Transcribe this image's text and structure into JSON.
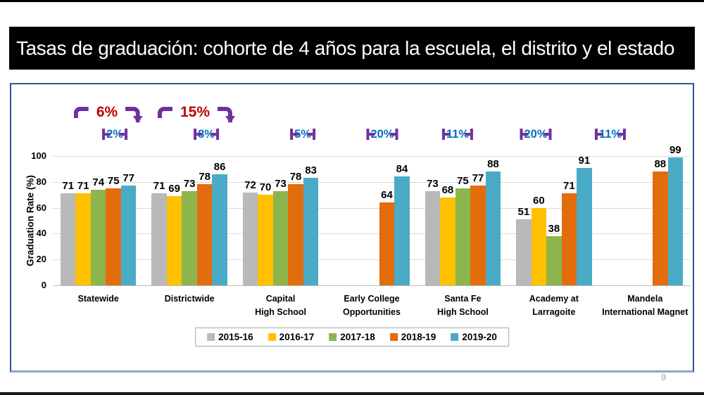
{
  "slide": {
    "title": "Tasas de graduación: cohorte de 4 años para la escuela, el distrito y el estado",
    "page_number": "9"
  },
  "chart_data": {
    "type": "bar",
    "title": "Tasas de graduación: cohorte de 4 años para la escuela, el distrito y el estado",
    "xlabel": "",
    "ylabel": "Graduation Rate (%)",
    "ylim": [
      0,
      100
    ],
    "yticks": [
      0,
      20,
      40,
      60,
      80,
      100
    ],
    "grid": true,
    "legend_position": "bottom",
    "categories": [
      "Statewide",
      "Districtwide",
      "Capital\nHigh School",
      "Early College\nOpportunities",
      "Santa Fe\nHigh School",
      "Academy at\nLarragoite",
      "Mandela\nInternational Magnet"
    ],
    "series": [
      {
        "name": "2015-16",
        "color": "#b9b9b9",
        "values": [
          71,
          71,
          72,
          null,
          73,
          51,
          null
        ]
      },
      {
        "name": "2016-17",
        "color": "#ffc000",
        "values": [
          71,
          69,
          70,
          null,
          68,
          60,
          null
        ]
      },
      {
        "name": "2017-18",
        "color": "#8db54e",
        "values": [
          74,
          73,
          73,
          null,
          75,
          38,
          null
        ]
      },
      {
        "name": "2018-19",
        "color": "#e36c0d",
        "values": [
          75,
          78,
          78,
          64,
          77,
          71,
          88
        ]
      },
      {
        "name": "2019-20",
        "color": "#4aabc7",
        "values": [
          77,
          86,
          83,
          84,
          88,
          91,
          99
        ]
      }
    ],
    "annotations": {
      "overall_change": [
        {
          "label": "6%",
          "category": "Statewide"
        },
        {
          "label": "15%",
          "category": "Districtwide"
        }
      ],
      "recent_change": [
        {
          "label": "2%",
          "category": "Statewide"
        },
        {
          "label": "8%",
          "category": "Districtwide"
        },
        {
          "label": "5%",
          "category": "Capital High School"
        },
        {
          "label": "20%",
          "category": "Early College Opportunities"
        },
        {
          "label": "11%",
          "category": "Santa Fe High School"
        },
        {
          "label": "20%",
          "category": "Academy at Larragoite"
        },
        {
          "label": "11%",
          "category": "Mandela International Magnet"
        }
      ]
    }
  },
  "colors": {
    "title_bar_bg": "#000000",
    "title_text": "#ffffff",
    "annotation_bracket": "#7030a0",
    "annotation_overall_text": "#c00000",
    "annotation_recent_text": "#0070c0",
    "gridline": "#d9d9d9",
    "panel_border": "#2e5596",
    "legend_border": "#a6a6a6",
    "page_number_text": "#a6a6a6"
  }
}
